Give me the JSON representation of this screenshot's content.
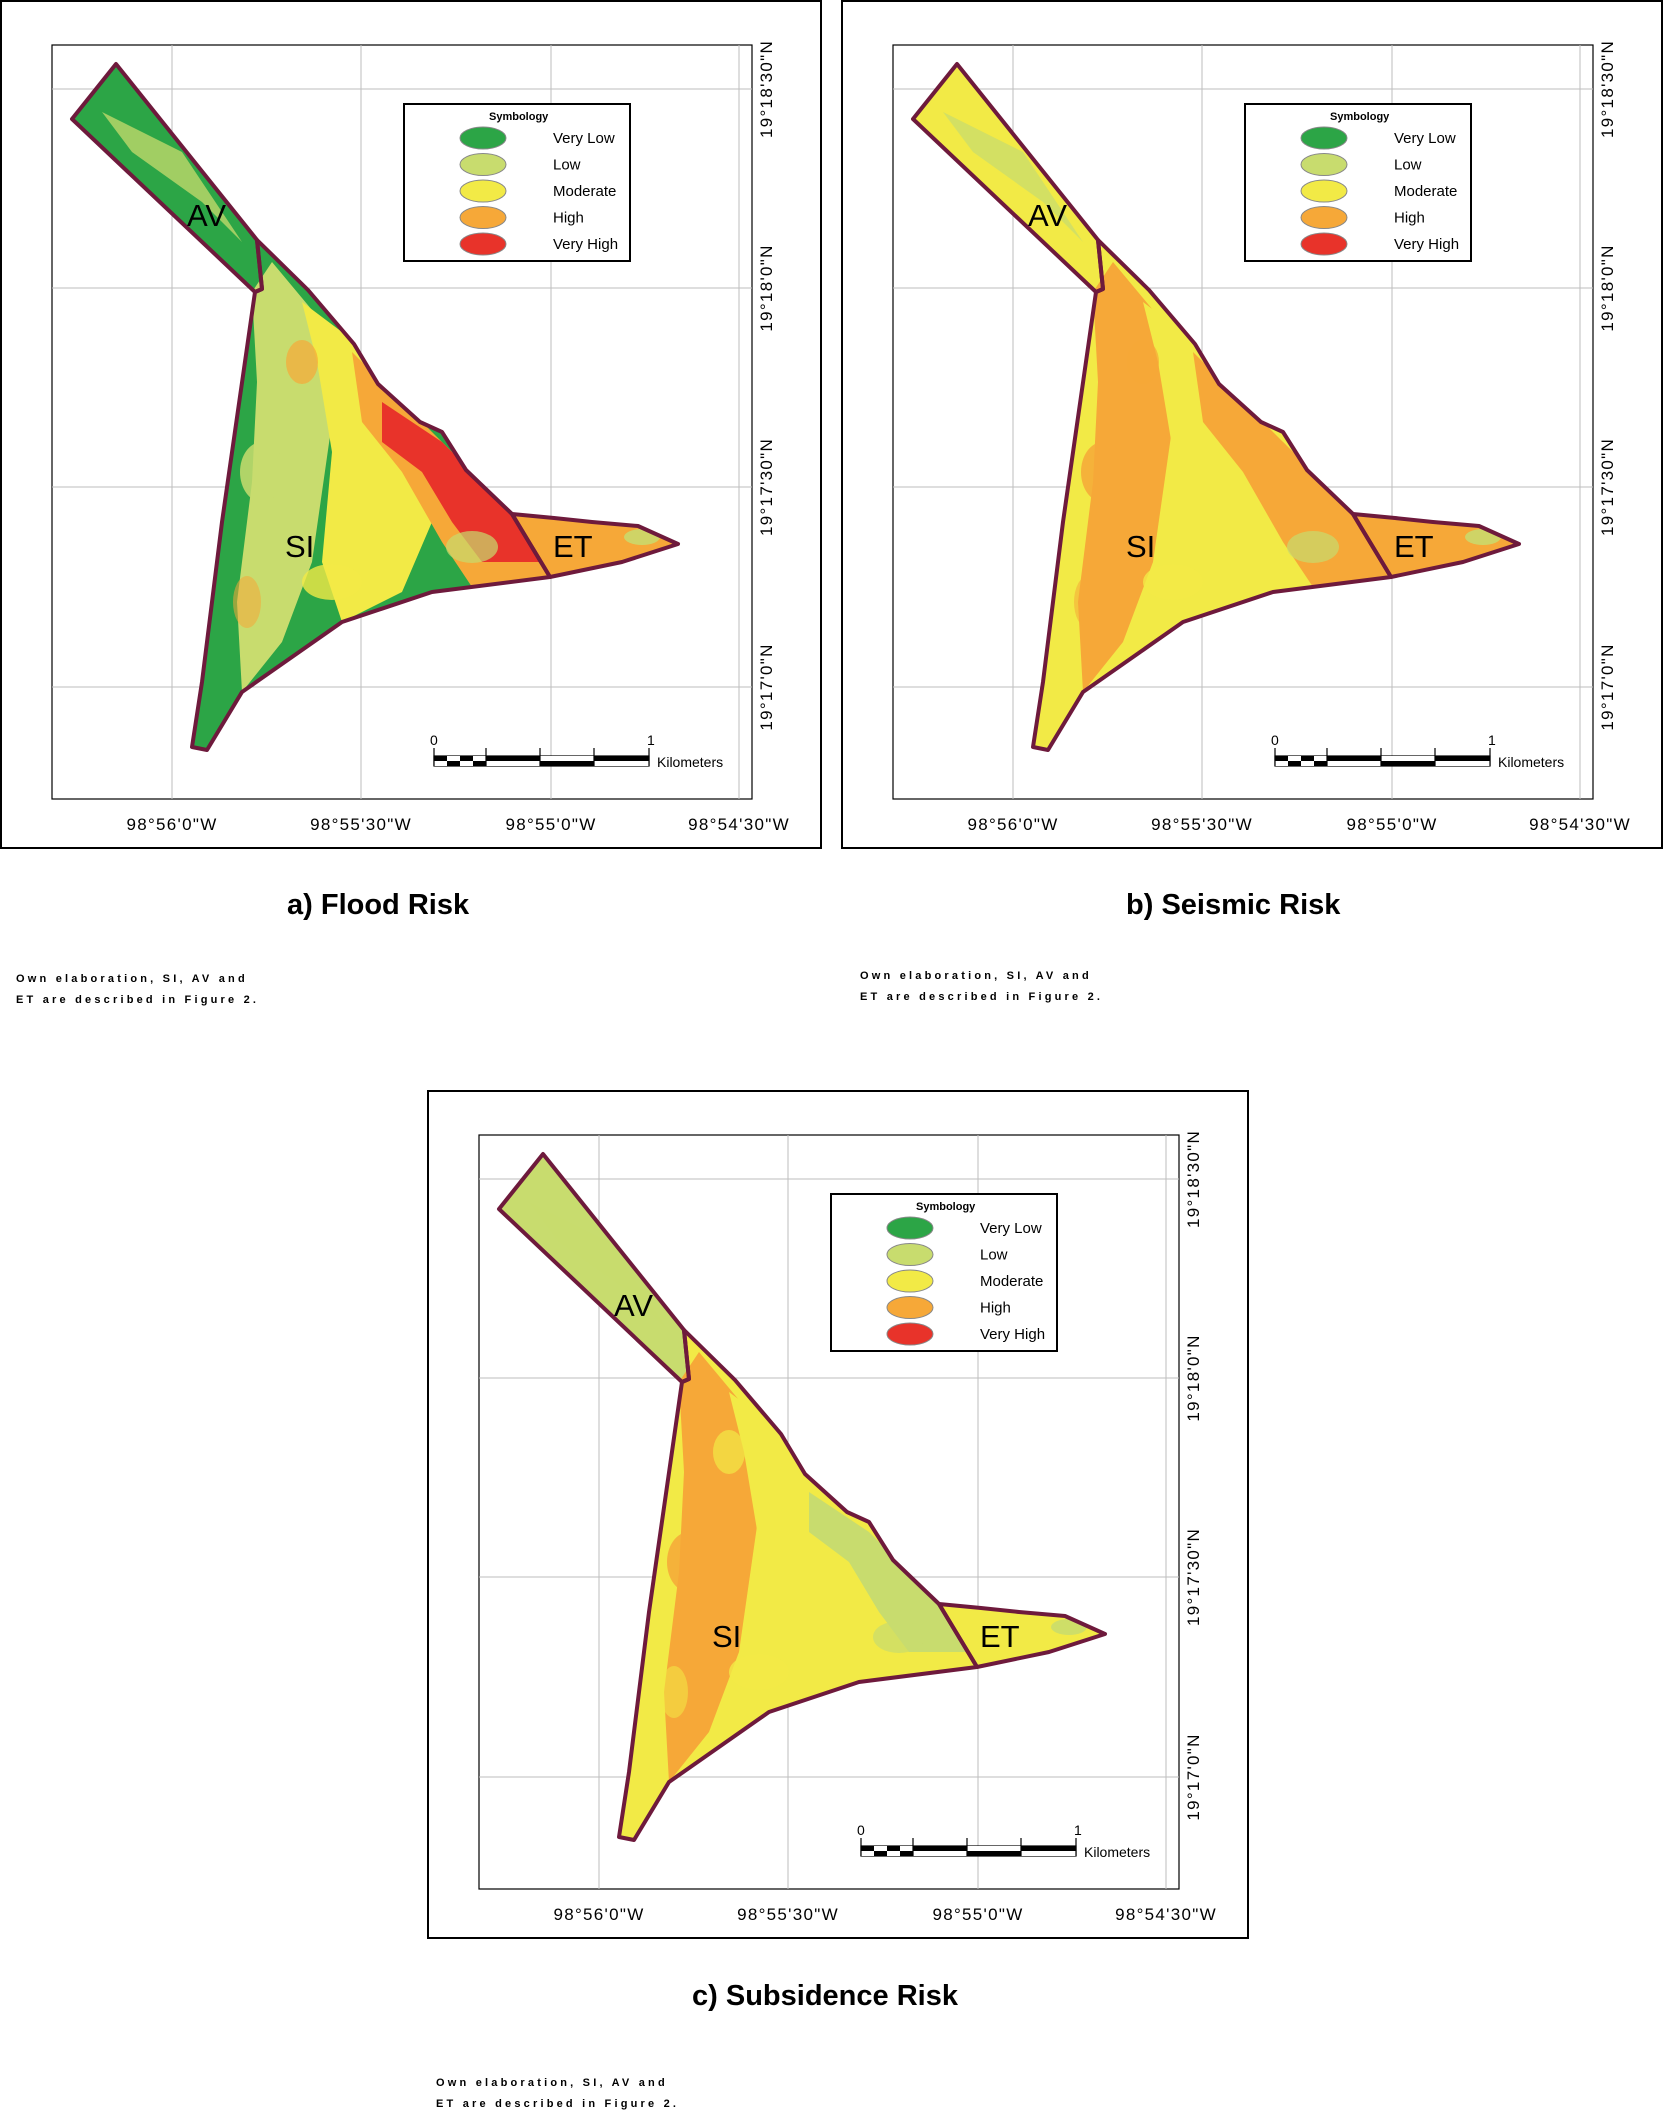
{
  "colors": {
    "very_low": "#2ca546",
    "low": "#c8dc6e",
    "moderate": "#f2ea46",
    "high": "#f6a838",
    "very_high": "#e8332a",
    "boundary": "#6e1a3c"
  },
  "maps": [
    {
      "id": "flood",
      "caption_letter": "a)",
      "caption_title": "Flood Risk",
      "note_line1": "Own elaboration, SI, AV and",
      "note_line2": "ET are described in Figure 2.",
      "palette": {
        "av": "very_low",
        "si_west": "very_low",
        "si_mid": "low",
        "si_center": "moderate",
        "si_east": "high",
        "si_core": "very_high",
        "et": "high",
        "patch": "low"
      }
    },
    {
      "id": "seismic",
      "caption_letter": "b)",
      "caption_title": "Seismic Risk",
      "note_line1": "Own elaboration, SI, AV and",
      "note_line2": "ET are described in Figure 2.",
      "palette": {
        "av": "moderate",
        "si_west": "moderate",
        "si_mid": "high",
        "si_center": "moderate",
        "si_east": "high",
        "si_core": "high",
        "et": "high",
        "patch": "low"
      }
    },
    {
      "id": "subsidence",
      "caption_letter": "c)",
      "caption_title": "Subsidence Risk",
      "note_line1": "Own elaboration, SI, AV and",
      "note_line2": "ET are described in Figure 2.",
      "palette": {
        "av": "low",
        "si_west": "moderate",
        "si_mid": "high",
        "si_center": "moderate",
        "si_east": "moderate",
        "si_core": "low",
        "et": "moderate",
        "patch": "low"
      }
    }
  ],
  "legend": {
    "title": "Symbology",
    "items": [
      {
        "label": "Very Low",
        "color": "very_low"
      },
      {
        "label": "Low",
        "color": "low"
      },
      {
        "label": "Moderate",
        "color": "moderate"
      },
      {
        "label": "High",
        "color": "high"
      },
      {
        "label": "Very High",
        "color": "very_high"
      }
    ]
  },
  "zones": {
    "av": "AV",
    "si": "SI",
    "et": "ET"
  },
  "axes": {
    "longitude_ticks": [
      "98°56'0\"W",
      "98°55'30\"W",
      "98°55'0\"W",
      "98°54'30\"W"
    ],
    "latitude_ticks": [
      "19°18'30\"N",
      "19°18'0\"N",
      "19°17'30\"N",
      "19°17'0\"N"
    ]
  },
  "scalebar": {
    "start": "0",
    "end": "1",
    "unit": "Kilometers"
  }
}
